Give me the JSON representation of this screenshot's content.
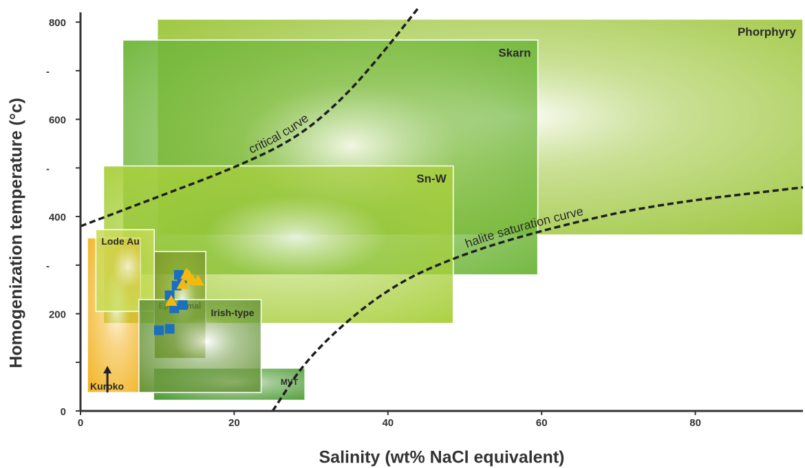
{
  "chart_data": {
    "type": "scatter",
    "title": "",
    "xlabel": "Salinity (wt% NaCl equivalent)",
    "ylabel": "Homogenization temperature (°c)",
    "xlim": [
      0,
      94
    ],
    "ylim": [
      0,
      820
    ],
    "x_ticks": [
      {
        "value": 0,
        "label": "0"
      },
      {
        "value": 20,
        "label": "20"
      },
      {
        "value": 40,
        "label": "40"
      },
      {
        "value": 60,
        "label": "60"
      },
      {
        "value": 80,
        "label": "80"
      }
    ],
    "y_ticks": [
      {
        "value": 0,
        "label": "0"
      },
      {
        "value": 100,
        "label": ""
      },
      {
        "value": 200,
        "label": "200"
      },
      {
        "value": 300,
        "label": "-"
      },
      {
        "value": 400,
        "label": "400"
      },
      {
        "value": 500,
        "label": "-"
      },
      {
        "value": 600,
        "label": "600"
      },
      {
        "value": 700,
        "label": "-"
      },
      {
        "value": 800,
        "label": "800"
      }
    ],
    "fields": [
      {
        "name": "Phorphyry",
        "x": [
          10,
          94
        ],
        "y": [
          362,
          806
        ],
        "label_pos": "top-right",
        "color": "#9cc53a"
      },
      {
        "name": "Skarn",
        "x": [
          5.5,
          59.5
        ],
        "y": [
          280,
          763
        ],
        "label_pos": "top-right",
        "color": "#6fb63a"
      },
      {
        "name": "Sn-W",
        "x": [
          3,
          48.5
        ],
        "y": [
          180,
          504
        ],
        "label_pos": "top-right",
        "color": "#a8cf3c"
      },
      {
        "name": "Kuroko",
        "x": [
          0.9,
          7.8
        ],
        "y": [
          38,
          356
        ],
        "label_pos": "bottom-left",
        "color": "#f2b422"
      },
      {
        "name": "Lode Au",
        "x": [
          2,
          9.6
        ],
        "y": [
          205,
          373
        ],
        "label_pos": "top-left",
        "color": "#c9dc58"
      },
      {
        "name": "Epithermal",
        "x": [
          9.6,
          16.3
        ],
        "y": [
          108,
          328
        ],
        "label_pos": "mid-left",
        "color": "#7e9a2c"
      },
      {
        "name": "MVT",
        "x": [
          9.5,
          29.2
        ],
        "y": [
          22,
          88
        ],
        "label_pos": "top-right",
        "color": "#4a9a32"
      },
      {
        "name": "Irish-type",
        "x": [
          7.6,
          23.5
        ],
        "y": [
          38,
          229
        ],
        "label_pos": "top-right",
        "color": "#69963a"
      }
    ],
    "curves": [
      {
        "name": "critical curve",
        "style": "dashed",
        "x": [
          0,
          10,
          20,
          28,
          34,
          39,
          44
        ],
        "y": [
          380,
          440,
          500,
          560,
          640,
          730,
          830
        ]
      },
      {
        "name": "halite saturation curve",
        "style": "dashed",
        "x": [
          25,
          30,
          40,
          50,
          62,
          75,
          94
        ],
        "y": [
          0,
          120,
          255,
          325,
          380,
          425,
          460
        ]
      }
    ],
    "series": [
      {
        "marker": "square",
        "color": "#1b6fbf",
        "points": [
          [
            10.2,
            166
          ],
          [
            11.6,
            169
          ],
          [
            12.2,
            211
          ],
          [
            13.3,
            218
          ],
          [
            11.6,
            238
          ],
          [
            12.5,
            258
          ],
          [
            13.2,
            269
          ],
          [
            12.8,
            280
          ]
        ]
      },
      {
        "marker": "triangle",
        "color": "#f5b80e",
        "points": [
          [
            11.8,
            226
          ],
          [
            13.3,
            261
          ],
          [
            14.5,
            270
          ],
          [
            15.3,
            268
          ],
          [
            13.8,
            282
          ],
          [
            14.1,
            278
          ]
        ]
      }
    ],
    "annotations": [
      {
        "type": "arrow",
        "direction": "up",
        "x": 3.5,
        "y_from": 38,
        "y_to": 90
      }
    ],
    "grid": false
  }
}
